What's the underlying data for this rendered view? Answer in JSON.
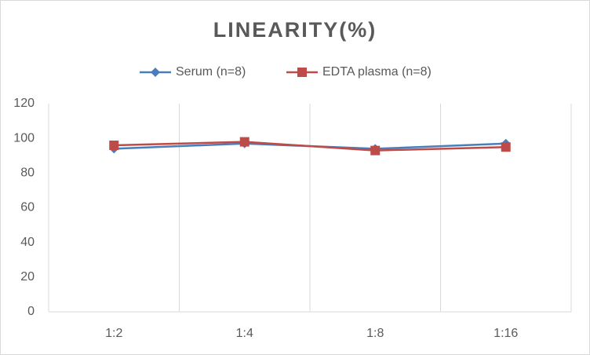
{
  "chart_data": {
    "type": "line",
    "title": "LINEARITY(%)",
    "categories": [
      "1:2",
      "1:4",
      "1:8",
      "1:16"
    ],
    "series": [
      {
        "name": "Serum (n=8)",
        "color": "#4a7ebb",
        "marker": "diamond",
        "values": [
          94,
          97,
          94,
          97
        ]
      },
      {
        "name": "EDTA plasma (n=8)",
        "color": "#be4b48",
        "marker": "square",
        "values": [
          96,
          98,
          93,
          95
        ]
      }
    ],
    "ylim": [
      0,
      120
    ],
    "yticks": [
      0,
      20,
      40,
      60,
      80,
      100,
      120
    ],
    "xgrid": true,
    "legend": "top"
  }
}
